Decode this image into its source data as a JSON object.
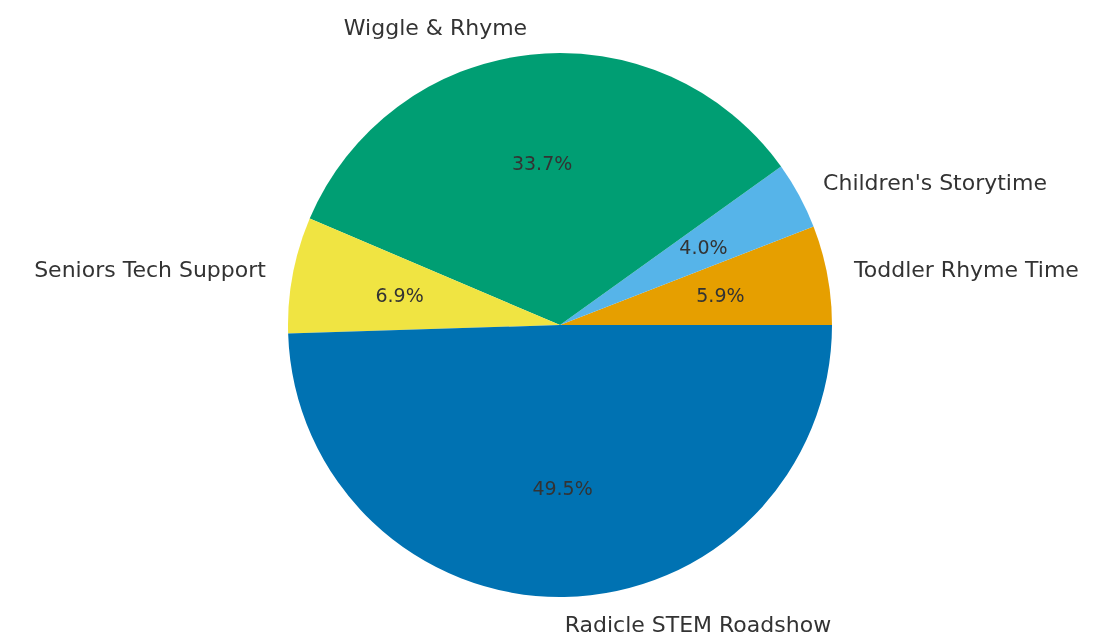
{
  "chart_data": {
    "type": "pie",
    "categories": [
      "Toddler Rhyme Time",
      "Children's Storytime",
      "Wiggle & Rhyme",
      "Seniors Tech Support",
      "Radicle STEM Roadshow"
    ],
    "values": [
      5.9,
      4.0,
      33.7,
      6.9,
      49.5
    ],
    "value_labels": [
      "5.9%",
      "4.0%",
      "33.7%",
      "6.9%",
      "49.5%"
    ],
    "colors": [
      "#e69f00",
      "#56b4e9",
      "#009e73",
      "#f0e442",
      "#0072b2"
    ],
    "legend": false
  }
}
